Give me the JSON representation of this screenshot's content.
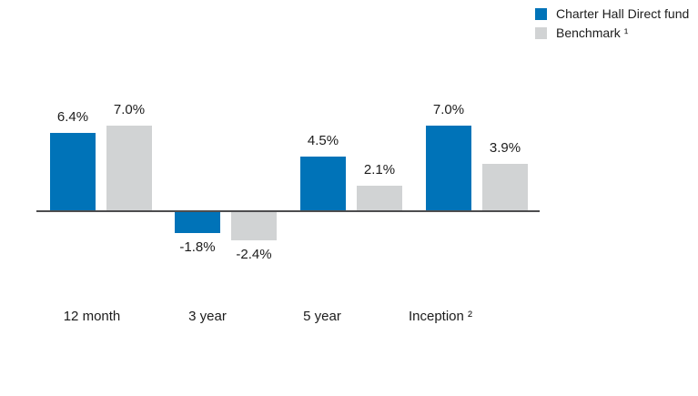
{
  "chart_data": {
    "type": "bar",
    "categories": [
      "12 month",
      "3 year",
      "5 year",
      "Inception ²"
    ],
    "series": [
      {
        "name": "Charter Hall Direct fund",
        "color": "#0073B8",
        "values": [
          6.4,
          -1.8,
          4.5,
          7.0
        ],
        "labels": [
          "6.4%",
          "-1.8%",
          "4.5%",
          "7.0%"
        ]
      },
      {
        "name": "Benchmark ¹",
        "color": "#D1D3D4",
        "values": [
          7.0,
          -2.4,
          2.1,
          3.9
        ],
        "labels": [
          "7.0%",
          "-2.4%",
          "2.1%",
          "3.9%"
        ]
      }
    ],
    "title": "",
    "xlabel": "",
    "ylabel": "",
    "unit": "%",
    "baseline_value": 0,
    "ylim": [
      -2.4,
      7.0
    ],
    "grid": false,
    "legend_position": "top-right"
  },
  "legend": {
    "items": [
      {
        "label": "Charter Hall Direct fund",
        "color": "#0073B8"
      },
      {
        "label": "Benchmark ¹",
        "color": "#D1D3D4"
      }
    ]
  },
  "axis": {
    "baseline_color": "#4d4d4f"
  }
}
